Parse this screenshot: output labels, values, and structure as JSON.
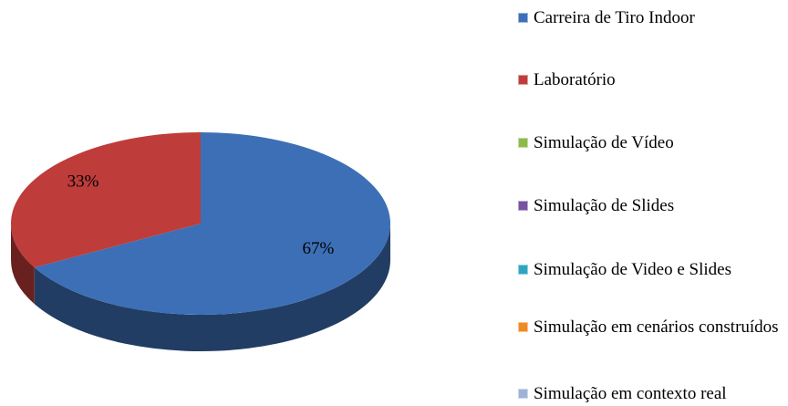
{
  "chart_data": {
    "type": "pie",
    "categories": [
      "Carreira de Tiro Indoor",
      "Laboratório",
      "Simulação de Vídeo",
      "Simulação de Slides",
      "Simulação de Video e Slides",
      "Simulação em cenários construídos",
      "Simulação em contexto real"
    ],
    "values": [
      67,
      33,
      0,
      0,
      0,
      0,
      0
    ],
    "value_labels": [
      "67%",
      "33%",
      null,
      null,
      null,
      null,
      null
    ],
    "colors": [
      "#3d6fb6",
      "#be3c3a",
      "#8fb94a",
      "#7652a0",
      "#2fa6c0",
      "#f08a24",
      "#9db3d6"
    ]
  }
}
